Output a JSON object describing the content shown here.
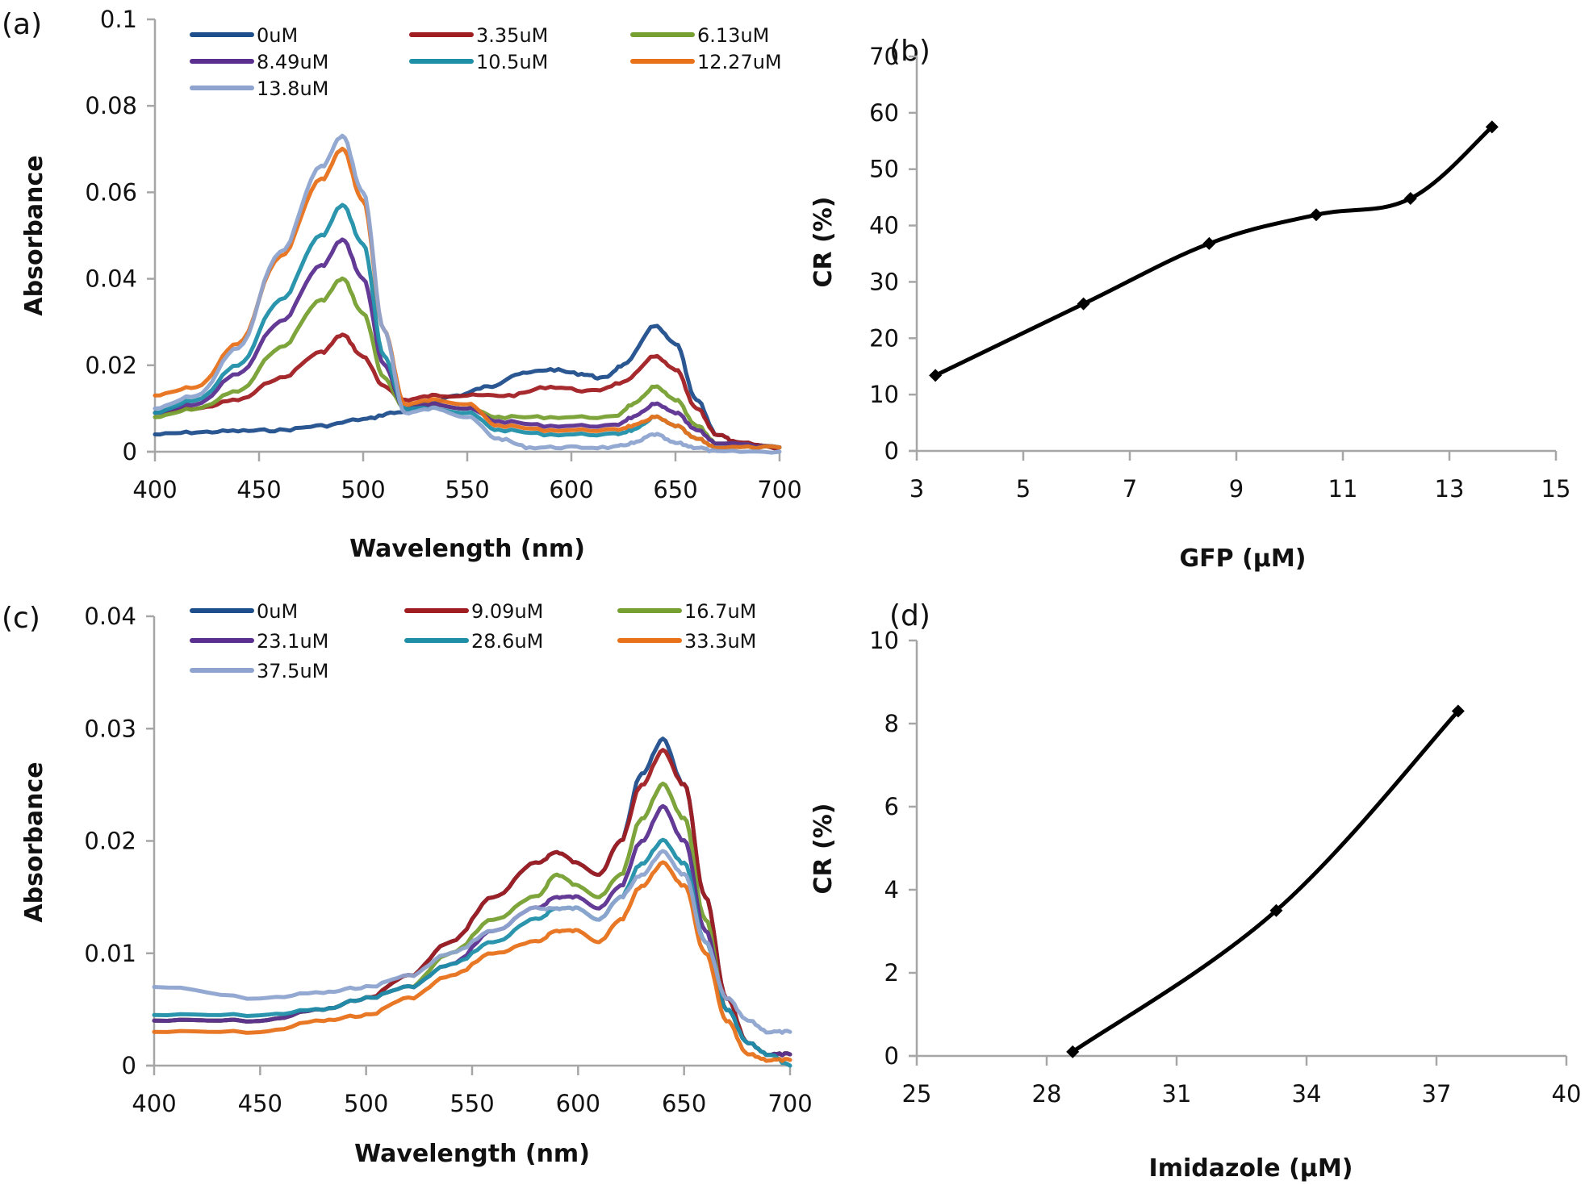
{
  "chart_data": [
    {
      "id": "a",
      "panel_label": "(a)",
      "type": "line",
      "xlabel": "Wavelength (nm)",
      "ylabel": "Absorbance",
      "xlim": [
        400,
        700
      ],
      "ylim": [
        0,
        0.1
      ],
      "xticks": [
        400,
        450,
        500,
        550,
        600,
        650,
        700
      ],
      "yticks": [
        0,
        0.02,
        0.04,
        0.06,
        0.08,
        0.1
      ],
      "ytick_labels": [
        "0",
        "0.02",
        "0.04",
        "0.06",
        "0.08",
        "0.1"
      ],
      "grid": false,
      "legend_position": "top",
      "series": [
        {
          "name": "0uM",
          "color": "#1f4e8c",
          "x": [
            400,
            420,
            440,
            460,
            480,
            500,
            515,
            530,
            545,
            560,
            575,
            590,
            605,
            615,
            625,
            640,
            650,
            660,
            670,
            680,
            700
          ],
          "y": [
            0.004,
            0.0045,
            0.0048,
            0.005,
            0.006,
            0.0075,
            0.009,
            0.011,
            0.013,
            0.015,
            0.018,
            0.019,
            0.018,
            0.017,
            0.02,
            0.029,
            0.025,
            0.012,
            0.004,
            0.002,
            0.001
          ]
        },
        {
          "name": "3.35uM",
          "color": "#a01e22",
          "x": [
            400,
            420,
            440,
            460,
            480,
            490,
            500,
            510,
            520,
            535,
            550,
            570,
            590,
            610,
            625,
            640,
            650,
            660,
            670,
            680,
            700
          ],
          "y": [
            0.009,
            0.01,
            0.012,
            0.017,
            0.023,
            0.027,
            0.022,
            0.015,
            0.012,
            0.013,
            0.013,
            0.013,
            0.015,
            0.014,
            0.016,
            0.022,
            0.019,
            0.01,
            0.004,
            0.002,
            0.001
          ]
        },
        {
          "name": "6.13uM",
          "color": "#76a032",
          "x": [
            400,
            420,
            440,
            460,
            480,
            490,
            500,
            510,
            520,
            535,
            550,
            565,
            590,
            620,
            630,
            640,
            650,
            660,
            670,
            700
          ],
          "y": [
            0.008,
            0.01,
            0.014,
            0.024,
            0.035,
            0.04,
            0.032,
            0.017,
            0.01,
            0.011,
            0.01,
            0.008,
            0.008,
            0.008,
            0.011,
            0.015,
            0.012,
            0.006,
            0.002,
            0.001
          ]
        },
        {
          "name": "8.49uM",
          "color": "#5b2f8f",
          "x": [
            400,
            420,
            440,
            460,
            480,
            490,
            500,
            510,
            520,
            535,
            550,
            565,
            590,
            620,
            630,
            640,
            650,
            660,
            670,
            700
          ],
          "y": [
            0.009,
            0.011,
            0.018,
            0.03,
            0.043,
            0.049,
            0.04,
            0.02,
            0.01,
            0.011,
            0.01,
            0.007,
            0.006,
            0.006,
            0.008,
            0.011,
            0.009,
            0.005,
            0.002,
            0.001
          ]
        },
        {
          "name": "10.5uM",
          "color": "#1f8fa8",
          "x": [
            400,
            420,
            440,
            460,
            480,
            490,
            500,
            510,
            520,
            535,
            550,
            565,
            590,
            620,
            630,
            640,
            650,
            660,
            670,
            700
          ],
          "y": [
            0.009,
            0.012,
            0.02,
            0.035,
            0.05,
            0.057,
            0.048,
            0.022,
            0.01,
            0.01,
            0.009,
            0.005,
            0.004,
            0.004,
            0.005,
            0.008,
            0.006,
            0.003,
            0.001,
            0.001
          ]
        },
        {
          "name": "12.27uM",
          "color": "#e8711a",
          "x": [
            400,
            420,
            440,
            460,
            480,
            490,
            500,
            510,
            520,
            535,
            550,
            565,
            590,
            620,
            630,
            640,
            650,
            660,
            670,
            700
          ],
          "y": [
            0.013,
            0.015,
            0.025,
            0.045,
            0.063,
            0.07,
            0.058,
            0.028,
            0.011,
            0.012,
            0.011,
            0.006,
            0.005,
            0.005,
            0.006,
            0.008,
            0.006,
            0.003,
            0.001,
            0.001
          ]
        },
        {
          "name": "13.8uM",
          "color": "#8ea4cf",
          "x": [
            400,
            420,
            440,
            460,
            480,
            490,
            500,
            510,
            520,
            535,
            550,
            565,
            580,
            600,
            620,
            630,
            640,
            650,
            660,
            670,
            700
          ],
          "y": [
            0.01,
            0.013,
            0.024,
            0.046,
            0.066,
            0.073,
            0.06,
            0.028,
            0.009,
            0.01,
            0.008,
            0.003,
            0.001,
            0.001,
            0.001,
            0.002,
            0.004,
            0.002,
            0.001,
            0.0,
            0.0
          ]
        }
      ]
    },
    {
      "id": "b",
      "panel_label": "(b)",
      "type": "line",
      "xlabel": "GFP  (μM)",
      "ylabel": "CR (%)",
      "xlim": [
        3,
        15
      ],
      "ylim": [
        0,
        70
      ],
      "xticks": [
        3,
        5,
        7,
        9,
        11,
        13,
        15
      ],
      "yticks": [
        0,
        10,
        20,
        30,
        40,
        50,
        60,
        70
      ],
      "grid": false,
      "series": [
        {
          "name": "CR",
          "color": "#000000",
          "marker": "diamond",
          "x": [
            3.35,
            6.13,
            8.49,
            10.5,
            12.27,
            13.8
          ],
          "y": [
            13.4,
            26.1,
            36.8,
            41.9,
            44.8,
            57.5
          ]
        }
      ]
    },
    {
      "id": "c",
      "panel_label": "(c)",
      "type": "line",
      "xlabel": "Wavelength (nm)",
      "ylabel": "Absorbance",
      "xlim": [
        400,
        700
      ],
      "ylim": [
        0,
        0.04
      ],
      "xticks": [
        400,
        450,
        500,
        550,
        600,
        650,
        700
      ],
      "yticks": [
        0,
        0.01,
        0.02,
        0.03,
        0.04
      ],
      "ytick_labels": [
        "0",
        "0.01",
        "0.02",
        "0.03",
        "0.04"
      ],
      "grid": false,
      "legend_position": "top",
      "series": [
        {
          "name": "0uM",
          "color": "#1f4e8c",
          "x": [
            400,
            450,
            480,
            500,
            520,
            540,
            560,
            580,
            590,
            600,
            610,
            620,
            630,
            640,
            650,
            660,
            670,
            680,
            690,
            700
          ],
          "y": [
            0.004,
            0.004,
            0.005,
            0.006,
            0.008,
            0.011,
            0.015,
            0.018,
            0.019,
            0.018,
            0.017,
            0.02,
            0.026,
            0.029,
            0.025,
            0.015,
            0.006,
            0.002,
            0.001,
            0.001
          ]
        },
        {
          "name": "9.09uM",
          "color": "#a01e22",
          "x": [
            400,
            450,
            480,
            500,
            520,
            540,
            560,
            580,
            590,
            600,
            610,
            620,
            630,
            640,
            650,
            660,
            670,
            680,
            690,
            700
          ],
          "y": [
            0.004,
            0.004,
            0.005,
            0.006,
            0.008,
            0.011,
            0.015,
            0.018,
            0.019,
            0.018,
            0.017,
            0.02,
            0.025,
            0.028,
            0.025,
            0.015,
            0.006,
            0.002,
            0.001,
            0.001
          ]
        },
        {
          "name": "16.7uM",
          "color": "#76a032",
          "x": [
            400,
            450,
            480,
            500,
            520,
            540,
            560,
            580,
            590,
            600,
            610,
            620,
            630,
            640,
            650,
            660,
            670,
            680,
            690,
            700
          ],
          "y": [
            0.004,
            0.004,
            0.005,
            0.006,
            0.007,
            0.01,
            0.013,
            0.015,
            0.017,
            0.016,
            0.015,
            0.017,
            0.022,
            0.025,
            0.022,
            0.013,
            0.005,
            0.002,
            0.001,
            0.001
          ]
        },
        {
          "name": "23.1uM",
          "color": "#5b2f8f",
          "x": [
            400,
            450,
            480,
            500,
            520,
            540,
            560,
            580,
            590,
            600,
            610,
            620,
            630,
            640,
            650,
            660,
            670,
            680,
            690,
            700
          ],
          "y": [
            0.004,
            0.004,
            0.005,
            0.006,
            0.007,
            0.009,
            0.012,
            0.014,
            0.015,
            0.015,
            0.014,
            0.016,
            0.02,
            0.023,
            0.02,
            0.012,
            0.005,
            0.002,
            0.001,
            0.001
          ]
        },
        {
          "name": "28.6uM",
          "color": "#1f8fa8",
          "x": [
            400,
            450,
            480,
            500,
            520,
            540,
            560,
            580,
            590,
            600,
            610,
            620,
            630,
            640,
            650,
            660,
            670,
            680,
            690,
            700
          ],
          "y": [
            0.0045,
            0.0045,
            0.005,
            0.006,
            0.007,
            0.009,
            0.011,
            0.013,
            0.014,
            0.014,
            0.013,
            0.015,
            0.018,
            0.02,
            0.018,
            0.011,
            0.005,
            0.002,
            0.001,
            0.0
          ]
        },
        {
          "name": "33.3uM",
          "color": "#e8711a",
          "x": [
            400,
            450,
            480,
            500,
            520,
            540,
            560,
            580,
            590,
            600,
            610,
            620,
            630,
            640,
            650,
            660,
            670,
            680,
            690,
            700
          ],
          "y": [
            0.003,
            0.003,
            0.004,
            0.0045,
            0.006,
            0.008,
            0.01,
            0.011,
            0.012,
            0.012,
            0.011,
            0.013,
            0.016,
            0.018,
            0.016,
            0.01,
            0.004,
            0.001,
            0.0005,
            0.0005
          ]
        },
        {
          "name": "37.5uM",
          "color": "#8ea4cf",
          "x": [
            400,
            450,
            480,
            500,
            520,
            540,
            560,
            580,
            590,
            600,
            610,
            620,
            630,
            640,
            650,
            660,
            670,
            680,
            690,
            700
          ],
          "y": [
            0.007,
            0.006,
            0.0065,
            0.007,
            0.008,
            0.01,
            0.012,
            0.014,
            0.014,
            0.014,
            0.013,
            0.015,
            0.017,
            0.019,
            0.017,
            0.011,
            0.006,
            0.004,
            0.003,
            0.003
          ]
        }
      ]
    },
    {
      "id": "d",
      "panel_label": "(d)",
      "type": "line",
      "xlabel": "Imidazole  (μM)",
      "ylabel": "CR (%)",
      "xlim": [
        25,
        40
      ],
      "ylim": [
        0,
        10
      ],
      "xticks": [
        25,
        28,
        31,
        34,
        37,
        40
      ],
      "yticks": [
        0,
        2,
        4,
        6,
        8,
        10
      ],
      "grid": false,
      "series": [
        {
          "name": "CR",
          "color": "#000000",
          "marker": "diamond",
          "x": [
            28.6,
            33.3,
            37.5
          ],
          "y": [
            0.1,
            3.5,
            8.3
          ]
        }
      ]
    }
  ]
}
